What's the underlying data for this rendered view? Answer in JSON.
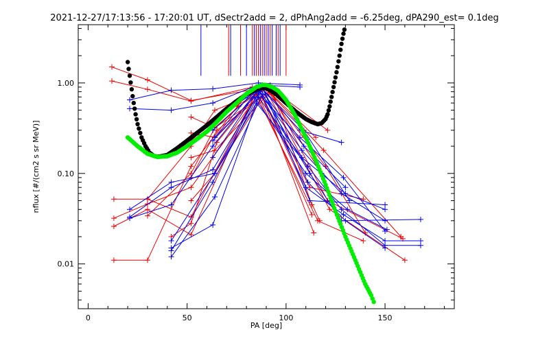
{
  "chart_data": {
    "type": "scatter",
    "title": "2021-12-27/17:13:56 - 17:20:01 UT, dSectr2add = 2, dPhAng2add = -6.25deg, dPA290_est=   0.1deg",
    "xlabel": "PA [deg]",
    "ylabel": "nflux [#/(cm2 s sr MeV)]",
    "xlim": [
      -5,
      185
    ],
    "ylim": [
      0.0032,
      4.4
    ],
    "y_scale": "log",
    "x_ticks": [
      0,
      50,
      100,
      150
    ],
    "x_tick_labels": [
      "0",
      "50",
      "100",
      "150"
    ],
    "y_ticks": [
      0.01,
      0.1,
      1.0
    ],
    "y_tick_labels": [
      "0.01",
      "0.10",
      "1.00"
    ],
    "grid": false,
    "legend": "none",
    "colors": {
      "red": "#ee0000",
      "blue": "#0000ee",
      "black": "#000000",
      "green": "#00ee00"
    },
    "vlines": {
      "y_range": [
        1.2,
        4.4
      ],
      "red": [
        71,
        77,
        83,
        85,
        86,
        88,
        90,
        92,
        96,
        100
      ],
      "blue": [
        57,
        72,
        80,
        84,
        87,
        89,
        91,
        93,
        95,
        97
      ]
    },
    "series": [
      {
        "color": "red",
        "x": [
          12,
          30,
          52,
          88
        ],
        "y": [
          1.5,
          1.08,
          0.64,
          0.88
        ]
      },
      {
        "color": "red",
        "x": [
          12,
          30,
          52,
          88,
          115
        ],
        "y": [
          1.05,
          0.85,
          0.63,
          0.95,
          0.25
        ]
      },
      {
        "color": "red",
        "x": [
          13,
          30,
          52,
          86,
          112,
          139
        ],
        "y": [
          0.052,
          0.052,
          0.033,
          0.85,
          0.07,
          0.052
        ]
      },
      {
        "color": "red",
        "x": [
          13,
          30,
          52,
          85,
          113
        ],
        "y": [
          0.026,
          0.04,
          0.021,
          0.82,
          0.035
        ]
      },
      {
        "color": "red",
        "x": [
          13,
          30,
          52,
          83,
          116,
          139
        ],
        "y": [
          0.011,
          0.011,
          0.12,
          0.9,
          0.03,
          0.018
        ]
      },
      {
        "color": "red",
        "x": [
          13,
          30,
          52,
          87,
          114
        ],
        "y": [
          0.032,
          0.046,
          0.07,
          0.8,
          0.022
        ]
      },
      {
        "color": "red",
        "x": [
          30,
          52,
          64,
          90,
          120,
          140
        ],
        "y": [
          0.052,
          0.2,
          0.5,
          0.85,
          0.12,
          0.022
        ]
      },
      {
        "color": "red",
        "x": [
          30,
          52,
          64,
          92,
          121,
          159
        ],
        "y": [
          0.034,
          0.1,
          0.32,
          0.82,
          0.05,
          0.019
        ]
      },
      {
        "color": "red",
        "x": [
          52,
          64,
          90,
          118
        ],
        "y": [
          0.23,
          0.4,
          0.88,
          0.1
        ]
      },
      {
        "color": "red",
        "x": [
          52,
          64,
          91,
          122,
          160
        ],
        "y": [
          0.15,
          0.18,
          0.75,
          0.04,
          0.011
        ]
      },
      {
        "color": "red",
        "x": [
          52,
          64,
          88,
          117
        ],
        "y": [
          0.05,
          0.1,
          0.7,
          0.03
        ]
      },
      {
        "color": "red",
        "x": [
          52,
          64,
          89,
          119,
          158
        ],
        "y": [
          0.28,
          0.25,
          0.9,
          0.18,
          0.02
        ]
      },
      {
        "color": "red",
        "x": [
          52,
          65,
          93,
          121
        ],
        "y": [
          0.09,
          0.3,
          0.85,
          0.3
        ]
      },
      {
        "color": "red",
        "x": [
          42,
          52,
          65,
          87
        ],
        "y": [
          0.02,
          0.028,
          0.22,
          0.85
        ]
      },
      {
        "color": "red",
        "x": [
          52,
          64,
          76,
          92,
          113
        ],
        "y": [
          0.42,
          0.32,
          0.55,
          0.95,
          0.045
        ]
      },
      {
        "color": "blue",
        "x": [
          21,
          42,
          63,
          86,
          107
        ],
        "y": [
          0.65,
          0.83,
          0.86,
          1.0,
          0.95
        ]
      },
      {
        "color": "blue",
        "x": [
          21,
          42,
          63,
          86,
          107
        ],
        "y": [
          0.52,
          0.5,
          0.6,
          0.95,
          0.9
        ]
      },
      {
        "color": "blue",
        "x": [
          21,
          42,
          63,
          87,
          107,
          128
        ],
        "y": [
          0.032,
          0.045,
          0.2,
          0.9,
          0.3,
          0.22
        ]
      },
      {
        "color": "blue",
        "x": [
          21,
          42,
          64,
          87,
          109,
          130
        ],
        "y": [
          0.04,
          0.08,
          0.1,
          0.85,
          0.2,
          0.07
        ]
      },
      {
        "color": "blue",
        "x": [
          21,
          42,
          63,
          88,
          112,
          150
        ],
        "y": [
          0.033,
          0.07,
          0.11,
          0.9,
          0.05,
          0.045
        ]
      },
      {
        "color": "blue",
        "x": [
          42,
          63,
          86,
          108,
          130,
          150
        ],
        "y": [
          0.015,
          0.027,
          0.7,
          0.15,
          0.06,
          0.04
        ]
      },
      {
        "color": "blue",
        "x": [
          42,
          64,
          88,
          112,
          128,
          168
        ],
        "y": [
          0.012,
          0.055,
          0.75,
          0.1,
          0.03,
          0.031
        ]
      },
      {
        "color": "blue",
        "x": [
          42,
          63,
          87,
          110,
          129,
          150,
          168
        ],
        "y": [
          0.014,
          0.08,
          0.8,
          0.07,
          0.035,
          0.018,
          0.018
        ]
      },
      {
        "color": "blue",
        "x": [
          42,
          64,
          85,
          111,
          128,
          150,
          168
        ],
        "y": [
          0.018,
          0.1,
          0.6,
          0.12,
          0.04,
          0.016,
          0.016
        ]
      },
      {
        "color": "blue",
        "x": [
          63,
          85,
          107,
          129,
          150
        ],
        "y": [
          0.15,
          0.8,
          0.25,
          0.09,
          0.023
        ]
      },
      {
        "color": "blue",
        "x": [
          63,
          86,
          108,
          128,
          150
        ],
        "y": [
          0.3,
          0.85,
          0.18,
          0.06,
          0.03
        ]
      },
      {
        "color": "blue",
        "x": [
          64,
          88,
          111,
          130,
          150
        ],
        "y": [
          0.4,
          0.9,
          0.08,
          0.03,
          0.015
        ]
      },
      {
        "color": "blue",
        "x": [
          63,
          84,
          110,
          131,
          151
        ],
        "y": [
          0.23,
          0.7,
          0.1,
          0.04,
          0.024
        ]
      },
      {
        "color": "blue",
        "x": [
          64,
          86,
          109,
          132
        ],
        "y": [
          0.25,
          0.95,
          0.3,
          0.05
        ]
      }
    ],
    "fit_curves": [
      {
        "color": "black",
        "x": [
          20,
          21,
          22,
          23,
          24,
          25,
          27,
          29,
          31,
          33,
          35,
          37,
          40,
          45,
          50,
          55,
          60,
          65,
          70,
          75,
          80,
          85,
          88,
          90,
          92,
          95,
          100,
          105,
          110,
          113,
          116,
          118,
          120,
          121,
          122,
          123,
          124,
          125,
          126,
          127,
          128,
          129,
          130
        ],
        "y": [
          1.7,
          1.2,
          0.85,
          0.6,
          0.45,
          0.35,
          0.25,
          0.2,
          0.17,
          0.157,
          0.153,
          0.155,
          0.16,
          0.19,
          0.23,
          0.28,
          0.34,
          0.42,
          0.52,
          0.63,
          0.75,
          0.85,
          0.88,
          0.87,
          0.83,
          0.75,
          0.6,
          0.48,
          0.4,
          0.37,
          0.35,
          0.36,
          0.4,
          0.45,
          0.55,
          0.7,
          0.9,
          1.15,
          1.5,
          2.0,
          2.7,
          3.5,
          4.3
        ]
      },
      {
        "color": "green",
        "x": [
          20,
          25,
          30,
          35,
          40,
          45,
          50,
          55,
          60,
          65,
          70,
          75,
          80,
          85,
          88,
          90,
          93,
          96,
          100,
          105,
          110,
          115,
          120,
          125,
          130,
          135,
          140,
          143,
          145
        ],
        "y": [
          0.25,
          0.2,
          0.165,
          0.152,
          0.155,
          0.17,
          0.2,
          0.24,
          0.29,
          0.37,
          0.48,
          0.6,
          0.76,
          0.9,
          0.95,
          0.95,
          0.9,
          0.82,
          0.65,
          0.42,
          0.25,
          0.14,
          0.075,
          0.038,
          0.02,
          0.011,
          0.006,
          0.0045,
          0.0035
        ]
      }
    ]
  }
}
